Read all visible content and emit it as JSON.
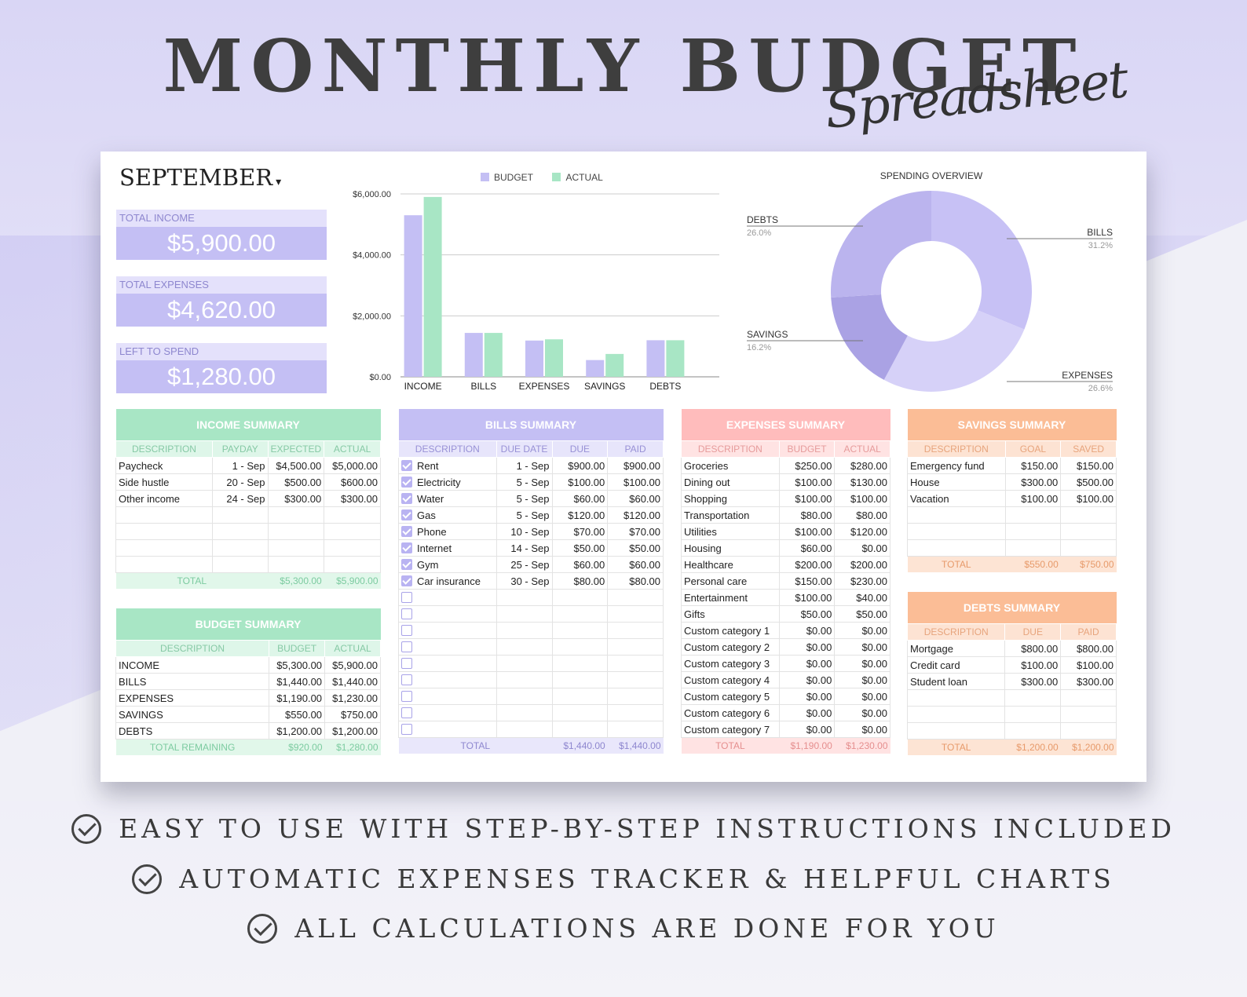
{
  "header": {
    "title": "MONTHLY BUDGET",
    "subtitle": "Spreadsheet"
  },
  "colors": {
    "purple": "#c4bff4",
    "green": "#a8e6c5",
    "pink": "#ffbcbc",
    "orange": "#fbbd96"
  },
  "sheet": {
    "month": "SEPTEMBER",
    "kpis": [
      {
        "label": "TOTAL INCOME",
        "value": "$5,900.00"
      },
      {
        "label": "TOTAL EXPENSES",
        "value": "$4,620.00"
      },
      {
        "label": "LEFT TO SPEND",
        "value": "$1,280.00"
      }
    ]
  },
  "chart_data": [
    {
      "type": "bar",
      "categories": [
        "INCOME",
        "BILLS",
        "EXPENSES",
        "SAVINGS",
        "DEBTS"
      ],
      "series": [
        {
          "name": "BUDGET",
          "values": [
            5300,
            1440,
            1190,
            550,
            1200
          ]
        },
        {
          "name": "ACTUAL",
          "values": [
            5900,
            1440,
            1230,
            750,
            1200
          ]
        }
      ],
      "yticks": [
        "$0.00",
        "$2,000.00",
        "$4,000.00",
        "$6,000.00"
      ],
      "ylim": [
        0,
        6000
      ],
      "legend": "top"
    },
    {
      "type": "pie",
      "title": "SPENDING OVERVIEW",
      "slices": [
        {
          "label": "BILLS",
          "pct": "31.2%",
          "value": 31.2,
          "color": "#c7c1f5"
        },
        {
          "label": "EXPENSES",
          "pct": "26.6%",
          "value": 26.6,
          "color": "#d6d1f8"
        },
        {
          "label": "SAVINGS",
          "pct": "16.2%",
          "value": 16.2,
          "color": "#aaa2e4"
        },
        {
          "label": "DEBTS",
          "pct": "26.0%",
          "value": 26.0,
          "color": "#bbb4ee"
        }
      ]
    }
  ],
  "income": {
    "title": "INCOME SUMMARY",
    "cols": [
      "DESCRIPTION",
      "PAYDAY",
      "EXPECTED",
      "ACTUAL"
    ],
    "rows": [
      [
        "Paycheck",
        "1 - Sep",
        "$4,500.00",
        "$5,000.00"
      ],
      [
        "Side hustle",
        "20 - Sep",
        "$500.00",
        "$600.00"
      ],
      [
        "Other income",
        "24 - Sep",
        "$300.00",
        "$300.00"
      ]
    ],
    "total": [
      "TOTAL",
      "$5,300.00",
      "$5,900.00"
    ]
  },
  "budget": {
    "title": "BUDGET SUMMARY",
    "cols": [
      "DESCRIPTION",
      "BUDGET",
      "ACTUAL"
    ],
    "rows": [
      [
        "INCOME",
        "$5,300.00",
        "$5,900.00"
      ],
      [
        "BILLS",
        "$1,440.00",
        "$1,440.00"
      ],
      [
        "EXPENSES",
        "$1,190.00",
        "$1,230.00"
      ],
      [
        "SAVINGS",
        "$550.00",
        "$750.00"
      ],
      [
        "DEBTS",
        "$1,200.00",
        "$1,200.00"
      ]
    ],
    "total": [
      "TOTAL REMAINING",
      "$920.00",
      "$1,280.00"
    ]
  },
  "bills": {
    "title": "BILLS SUMMARY",
    "cols": [
      "DESCRIPTION",
      "DUE DATE",
      "DUE",
      "PAID"
    ],
    "rows": [
      [
        "Rent",
        "1 - Sep",
        "$900.00",
        "$900.00"
      ],
      [
        "Electricity",
        "5 - Sep",
        "$100.00",
        "$100.00"
      ],
      [
        "Water",
        "5 - Sep",
        "$60.00",
        "$60.00"
      ],
      [
        "Gas",
        "5 - Sep",
        "$120.00",
        "$120.00"
      ],
      [
        "Phone",
        "10 - Sep",
        "$70.00",
        "$70.00"
      ],
      [
        "Internet",
        "14 - Sep",
        "$50.00",
        "$50.00"
      ],
      [
        "Gym",
        "25 - Sep",
        "$60.00",
        "$60.00"
      ],
      [
        "Car insurance",
        "30 - Sep",
        "$80.00",
        "$80.00"
      ]
    ],
    "total": [
      "TOTAL",
      "$1,440.00",
      "$1,440.00"
    ]
  },
  "expenses": {
    "title": "EXPENSES SUMMARY",
    "cols": [
      "DESCRIPTION",
      "BUDGET",
      "ACTUAL"
    ],
    "rows": [
      [
        "Groceries",
        "$250.00",
        "$280.00"
      ],
      [
        "Dining out",
        "$100.00",
        "$130.00"
      ],
      [
        "Shopping",
        "$100.00",
        "$100.00"
      ],
      [
        "Transportation",
        "$80.00",
        "$80.00"
      ],
      [
        "Utilities",
        "$100.00",
        "$120.00"
      ],
      [
        "Housing",
        "$60.00",
        "$0.00"
      ],
      [
        "Healthcare",
        "$200.00",
        "$200.00"
      ],
      [
        "Personal care",
        "$150.00",
        "$230.00"
      ],
      [
        "Entertainment",
        "$100.00",
        "$40.00"
      ],
      [
        "Gifts",
        "$50.00",
        "$50.00"
      ],
      [
        "Custom category 1",
        "$0.00",
        "$0.00"
      ],
      [
        "Custom category 2",
        "$0.00",
        "$0.00"
      ],
      [
        "Custom category 3",
        "$0.00",
        "$0.00"
      ],
      [
        "Custom category 4",
        "$0.00",
        "$0.00"
      ],
      [
        "Custom category 5",
        "$0.00",
        "$0.00"
      ],
      [
        "Custom category 6",
        "$0.00",
        "$0.00"
      ],
      [
        "Custom category 7",
        "$0.00",
        "$0.00"
      ]
    ],
    "total": [
      "TOTAL",
      "$1,190.00",
      "$1,230.00"
    ]
  },
  "savings": {
    "title": "SAVINGS SUMMARY",
    "cols": [
      "DESCRIPTION",
      "GOAL",
      "SAVED"
    ],
    "rows": [
      [
        "Emergency fund",
        "$150.00",
        "$150.00"
      ],
      [
        "House",
        "$300.00",
        "$500.00"
      ],
      [
        "Vacation",
        "$100.00",
        "$100.00"
      ]
    ],
    "total": [
      "TOTAL",
      "$550.00",
      "$750.00"
    ]
  },
  "debts": {
    "title": "DEBTS SUMMARY",
    "cols": [
      "DESCRIPTION",
      "DUE",
      "PAID"
    ],
    "rows": [
      [
        "Mortgage",
        "$800.00",
        "$800.00"
      ],
      [
        "Credit card",
        "$100.00",
        "$100.00"
      ],
      [
        "Student loan",
        "$300.00",
        "$300.00"
      ]
    ],
    "total": [
      "TOTAL",
      "$1,200.00",
      "$1,200.00"
    ]
  },
  "features": [
    "EASY TO USE WITH STEP-BY-STEP INSTRUCTIONS INCLUDED",
    "AUTOMATIC EXPENSES TRACKER & HELPFUL CHARTS",
    "ALL CALCULATIONS ARE DONE FOR YOU"
  ]
}
